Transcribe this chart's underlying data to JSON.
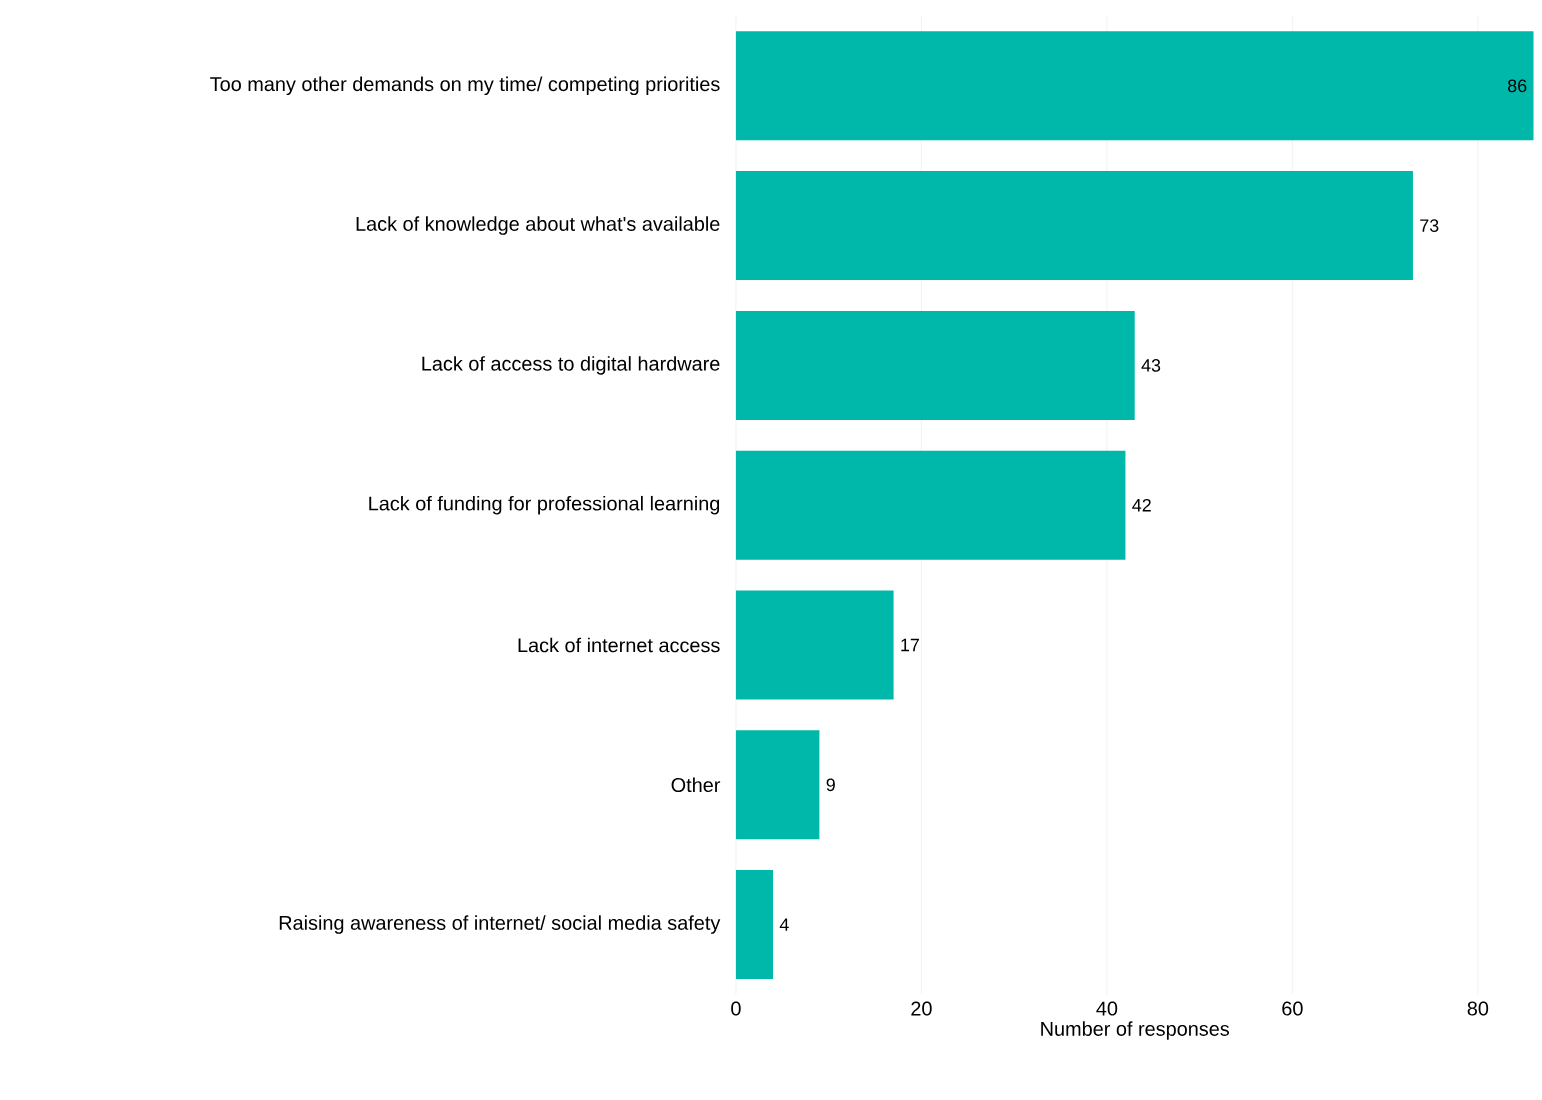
{
  "chart_data": {
    "type": "bar",
    "orientation": "horizontal",
    "xlabel": "Number of responses",
    "categories": [
      "Too many other demands on my time/ competing priorities",
      "Lack of knowledge about what's available",
      "Lack of access to digital hardware",
      "Lack of funding for professional learning",
      "Lack of internet access",
      "Other",
      "Raising awareness of internet/ social media safety"
    ],
    "values": [
      86,
      73,
      43,
      42,
      17,
      9,
      4
    ],
    "color": "#00b8a9",
    "xlim": [
      0,
      86
    ],
    "xticks": [
      0,
      20,
      40,
      60,
      80
    ],
    "grid": "x",
    "data_labels": true
  }
}
